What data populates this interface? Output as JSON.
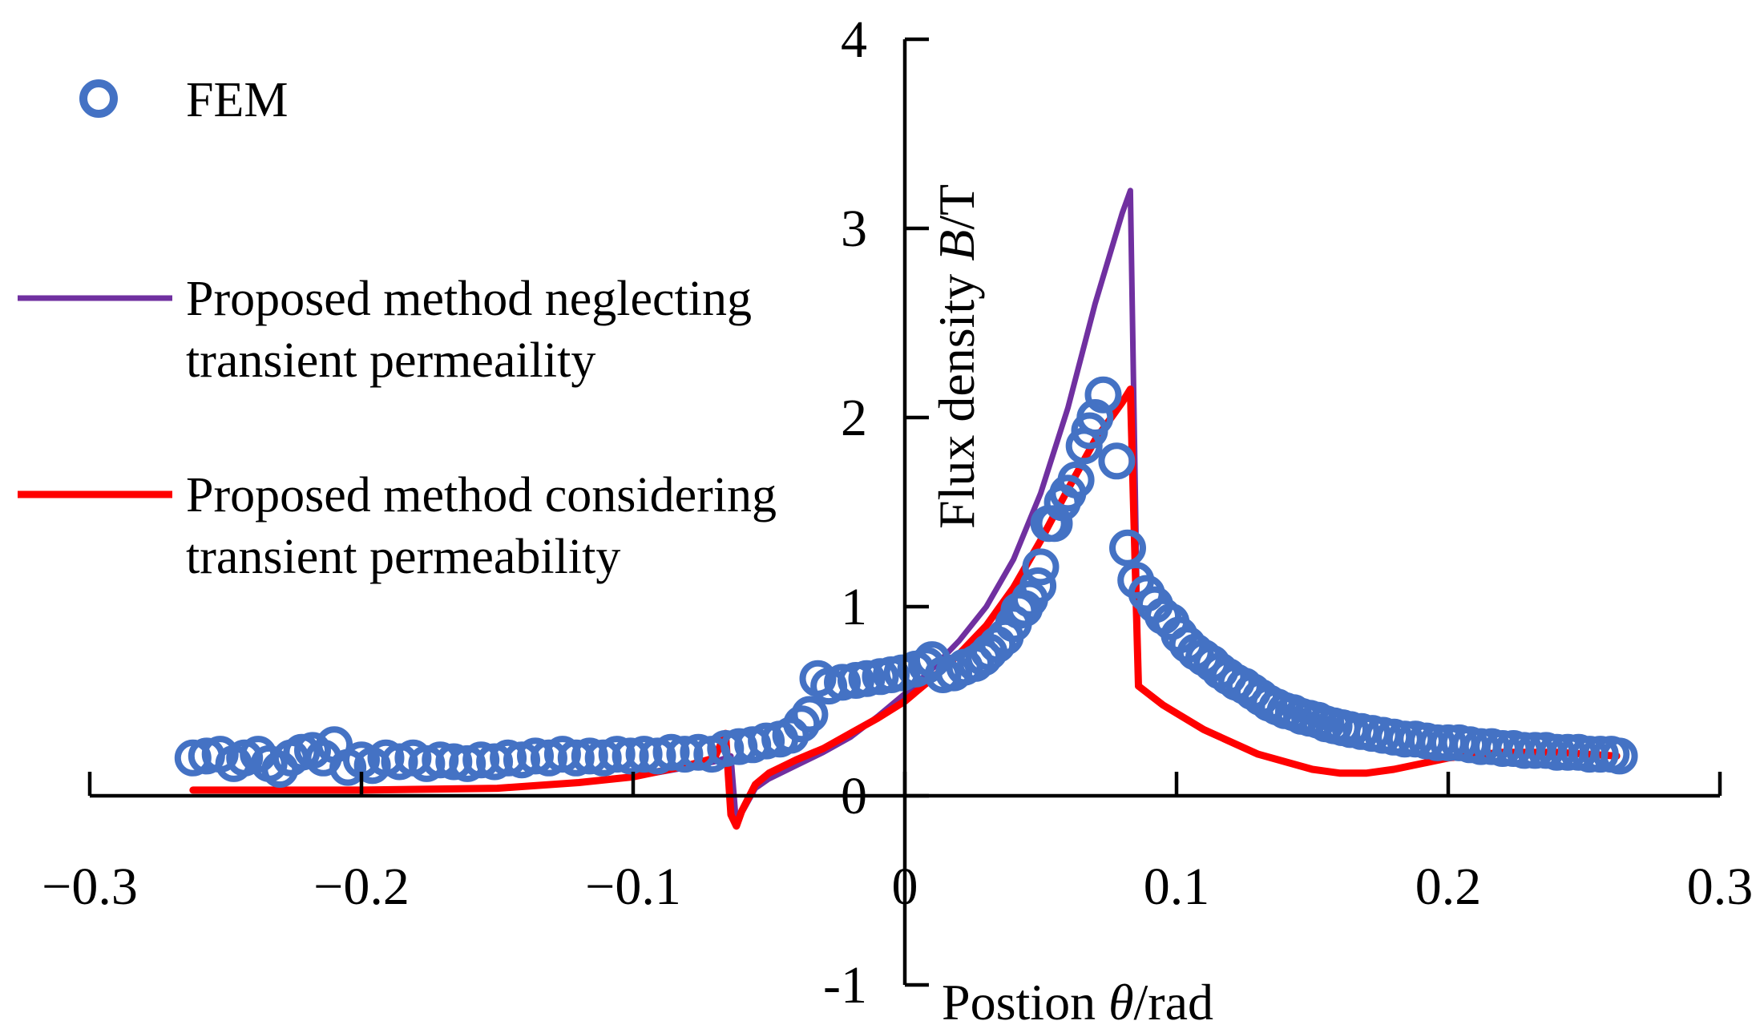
{
  "chart_data": {
    "type": "scatter+line",
    "title": "",
    "xlabel": {
      "prefix": "Postion ",
      "symbol": "θ",
      "suffix": "/rad"
    },
    "ylabel": {
      "prefix": "Flux density ",
      "symbol": "B",
      "suffix": "/T"
    },
    "xlim": [
      -0.3,
      0.3
    ],
    "ylim": [
      -1,
      4
    ],
    "x_ticks": [
      -0.3,
      -0.2,
      -0.1,
      0,
      0.1,
      0.2,
      0.3
    ],
    "x_tick_labels": [
      "−0.3",
      "−0.2",
      "−0.1",
      "0",
      "0.1",
      "0.2",
      "0.3"
    ],
    "y_ticks": [
      -1,
      0,
      1,
      2,
      3,
      4
    ],
    "y_tick_labels": [
      "-1",
      "0",
      "1",
      "2",
      "3",
      "4"
    ],
    "grid": false,
    "legend_position": "top-left",
    "colors": {
      "fem": "#4472C4",
      "neglecting": "#7030A0",
      "considering": "#FF0000",
      "axis": "#000000"
    },
    "series": [
      {
        "name": "FEM",
        "legend_lines": [
          "FEM"
        ],
        "kind": "scatter",
        "points": [
          [
            -0.262,
            0.2
          ],
          [
            -0.257,
            0.21
          ],
          [
            -0.252,
            0.22
          ],
          [
            -0.247,
            0.17
          ],
          [
            -0.243,
            0.2
          ],
          [
            -0.238,
            0.22
          ],
          [
            -0.234,
            0.17
          ],
          [
            -0.23,
            0.14
          ],
          [
            -0.226,
            0.2
          ],
          [
            -0.222,
            0.23
          ],
          [
            -0.218,
            0.24
          ],
          [
            -0.214,
            0.2
          ],
          [
            -0.21,
            0.27
          ],
          [
            -0.205,
            0.15
          ],
          [
            -0.2,
            0.19
          ],
          [
            -0.196,
            0.16
          ],
          [
            -0.191,
            0.2
          ],
          [
            -0.186,
            0.18
          ],
          [
            -0.181,
            0.2
          ],
          [
            -0.176,
            0.17
          ],
          [
            -0.171,
            0.19
          ],
          [
            -0.166,
            0.18
          ],
          [
            -0.161,
            0.17
          ],
          [
            -0.156,
            0.19
          ],
          [
            -0.151,
            0.18
          ],
          [
            -0.146,
            0.2
          ],
          [
            -0.141,
            0.19
          ],
          [
            -0.136,
            0.21
          ],
          [
            -0.131,
            0.2
          ],
          [
            -0.126,
            0.22
          ],
          [
            -0.121,
            0.2
          ],
          [
            -0.116,
            0.21
          ],
          [
            -0.111,
            0.2
          ],
          [
            -0.106,
            0.22
          ],
          [
            -0.101,
            0.21
          ],
          [
            -0.096,
            0.22
          ],
          [
            -0.091,
            0.21
          ],
          [
            -0.086,
            0.23
          ],
          [
            -0.081,
            0.22
          ],
          [
            -0.076,
            0.23
          ],
          [
            -0.071,
            0.22
          ],
          [
            -0.066,
            0.25
          ],
          [
            -0.061,
            0.26
          ],
          [
            -0.056,
            0.27
          ],
          [
            -0.051,
            0.29
          ],
          [
            -0.046,
            0.3
          ],
          [
            -0.042,
            0.32
          ],
          [
            -0.038,
            0.38
          ],
          [
            -0.035,
            0.43
          ],
          [
            -0.032,
            0.62
          ],
          [
            -0.028,
            0.58
          ],
          [
            -0.023,
            0.6
          ],
          [
            -0.018,
            0.61
          ],
          [
            -0.014,
            0.62
          ],
          [
            -0.009,
            0.63
          ],
          [
            -0.005,
            0.64
          ],
          [
            -0.001,
            0.65
          ],
          [
            0.004,
            0.67
          ],
          [
            0.008,
            0.69
          ],
          [
            0.01,
            0.72
          ],
          [
            0.014,
            0.64
          ],
          [
            0.018,
            0.65
          ],
          [
            0.022,
            0.68
          ],
          [
            0.026,
            0.7
          ],
          [
            0.029,
            0.73
          ],
          [
            0.031,
            0.76
          ],
          [
            0.034,
            0.8
          ],
          [
            0.037,
            0.84
          ],
          [
            0.04,
            0.91
          ],
          [
            0.042,
            0.98
          ],
          [
            0.044,
            0.99
          ],
          [
            0.046,
            1.04
          ],
          [
            0.049,
            1.11
          ],
          [
            0.05,
            1.21
          ],
          [
            0.053,
            1.44
          ],
          [
            0.055,
            1.44
          ],
          [
            0.058,
            1.55
          ],
          [
            0.06,
            1.6
          ],
          [
            0.063,
            1.67
          ],
          [
            0.066,
            1.85
          ],
          [
            0.068,
            1.93
          ],
          [
            0.07,
            2.0
          ],
          [
            0.073,
            2.12
          ],
          [
            0.078,
            1.77
          ],
          [
            0.082,
            1.31
          ],
          [
            0.085,
            1.14
          ],
          [
            0.089,
            1.07
          ],
          [
            0.092,
            1.01
          ],
          [
            0.095,
            0.95
          ],
          [
            0.098,
            0.92
          ],
          [
            0.101,
            0.85
          ],
          [
            0.104,
            0.8
          ],
          [
            0.107,
            0.76
          ],
          [
            0.11,
            0.73
          ],
          [
            0.113,
            0.7
          ],
          [
            0.116,
            0.66
          ],
          [
            0.119,
            0.63
          ],
          [
            0.122,
            0.6
          ],
          [
            0.125,
            0.58
          ],
          [
            0.128,
            0.55
          ],
          [
            0.131,
            0.52
          ],
          [
            0.134,
            0.49
          ],
          [
            0.137,
            0.47
          ],
          [
            0.14,
            0.45
          ],
          [
            0.143,
            0.44
          ],
          [
            0.146,
            0.42
          ],
          [
            0.149,
            0.41
          ],
          [
            0.152,
            0.4
          ],
          [
            0.155,
            0.38
          ],
          [
            0.158,
            0.37
          ],
          [
            0.161,
            0.36
          ],
          [
            0.164,
            0.35
          ],
          [
            0.168,
            0.34
          ],
          [
            0.172,
            0.33
          ],
          [
            0.176,
            0.32
          ],
          [
            0.18,
            0.31
          ],
          [
            0.184,
            0.3
          ],
          [
            0.188,
            0.3
          ],
          [
            0.192,
            0.29
          ],
          [
            0.196,
            0.28
          ],
          [
            0.2,
            0.28
          ],
          [
            0.204,
            0.28
          ],
          [
            0.208,
            0.27
          ],
          [
            0.212,
            0.26
          ],
          [
            0.216,
            0.26
          ],
          [
            0.22,
            0.25
          ],
          [
            0.224,
            0.25
          ],
          [
            0.228,
            0.24
          ],
          [
            0.232,
            0.24
          ],
          [
            0.236,
            0.24
          ],
          [
            0.24,
            0.23
          ],
          [
            0.244,
            0.23
          ],
          [
            0.248,
            0.23
          ],
          [
            0.252,
            0.22
          ],
          [
            0.256,
            0.22
          ],
          [
            0.26,
            0.22
          ],
          [
            0.263,
            0.21
          ]
        ]
      },
      {
        "name": "Proposed method neglecting transient permeaility",
        "legend_lines": [
          "Proposed method neglecting",
          "transient permeaility"
        ],
        "kind": "line",
        "points": [
          [
            -0.262,
            0.03
          ],
          [
            -0.2,
            0.03
          ],
          [
            -0.15,
            0.04
          ],
          [
            -0.12,
            0.07
          ],
          [
            -0.1,
            0.1
          ],
          [
            -0.08,
            0.15
          ],
          [
            -0.07,
            0.18
          ],
          [
            -0.064,
            0.21
          ],
          [
            -0.062,
            -0.15
          ],
          [
            -0.06,
            -0.09
          ],
          [
            -0.055,
            0.04
          ],
          [
            -0.05,
            0.09
          ],
          [
            -0.04,
            0.16
          ],
          [
            -0.03,
            0.23
          ],
          [
            -0.02,
            0.31
          ],
          [
            -0.01,
            0.42
          ],
          [
            0.0,
            0.54
          ],
          [
            0.01,
            0.67
          ],
          [
            0.02,
            0.82
          ],
          [
            0.03,
            1.0
          ],
          [
            0.04,
            1.25
          ],
          [
            0.05,
            1.6
          ],
          [
            0.06,
            2.05
          ],
          [
            0.07,
            2.6
          ],
          [
            0.08,
            3.08
          ],
          [
            0.083,
            3.2
          ],
          [
            0.086,
            0.58
          ],
          [
            0.095,
            0.48
          ],
          [
            0.11,
            0.35
          ],
          [
            0.13,
            0.22
          ],
          [
            0.15,
            0.14
          ],
          [
            0.16,
            0.12
          ],
          [
            0.17,
            0.12
          ],
          [
            0.18,
            0.14
          ],
          [
            0.2,
            0.2
          ],
          [
            0.22,
            0.23
          ],
          [
            0.24,
            0.23
          ],
          [
            0.262,
            0.21
          ]
        ]
      },
      {
        "name": "Proposed method considering transient permeability",
        "legend_lines": [
          "Proposed method considering",
          "transient permeability"
        ],
        "kind": "line",
        "points": [
          [
            -0.262,
            0.03
          ],
          [
            -0.2,
            0.03
          ],
          [
            -0.15,
            0.04
          ],
          [
            -0.12,
            0.07
          ],
          [
            -0.1,
            0.1
          ],
          [
            -0.08,
            0.16
          ],
          [
            -0.07,
            0.2
          ],
          [
            -0.066,
            0.33
          ],
          [
            -0.064,
            -0.1
          ],
          [
            -0.062,
            -0.16
          ],
          [
            -0.06,
            -0.08
          ],
          [
            -0.055,
            0.06
          ],
          [
            -0.05,
            0.12
          ],
          [
            -0.04,
            0.19
          ],
          [
            -0.03,
            0.25
          ],
          [
            -0.02,
            0.33
          ],
          [
            -0.01,
            0.41
          ],
          [
            0.0,
            0.5
          ],
          [
            0.01,
            0.62
          ],
          [
            0.02,
            0.75
          ],
          [
            0.03,
            0.9
          ],
          [
            0.04,
            1.1
          ],
          [
            0.05,
            1.35
          ],
          [
            0.06,
            1.62
          ],
          [
            0.07,
            1.88
          ],
          [
            0.08,
            2.08
          ],
          [
            0.083,
            2.15
          ],
          [
            0.086,
            0.58
          ],
          [
            0.095,
            0.48
          ],
          [
            0.11,
            0.35
          ],
          [
            0.13,
            0.22
          ],
          [
            0.15,
            0.14
          ],
          [
            0.16,
            0.12
          ],
          [
            0.17,
            0.12
          ],
          [
            0.18,
            0.14
          ],
          [
            0.2,
            0.2
          ],
          [
            0.22,
            0.23
          ],
          [
            0.24,
            0.23
          ],
          [
            0.262,
            0.21
          ]
        ]
      }
    ]
  }
}
